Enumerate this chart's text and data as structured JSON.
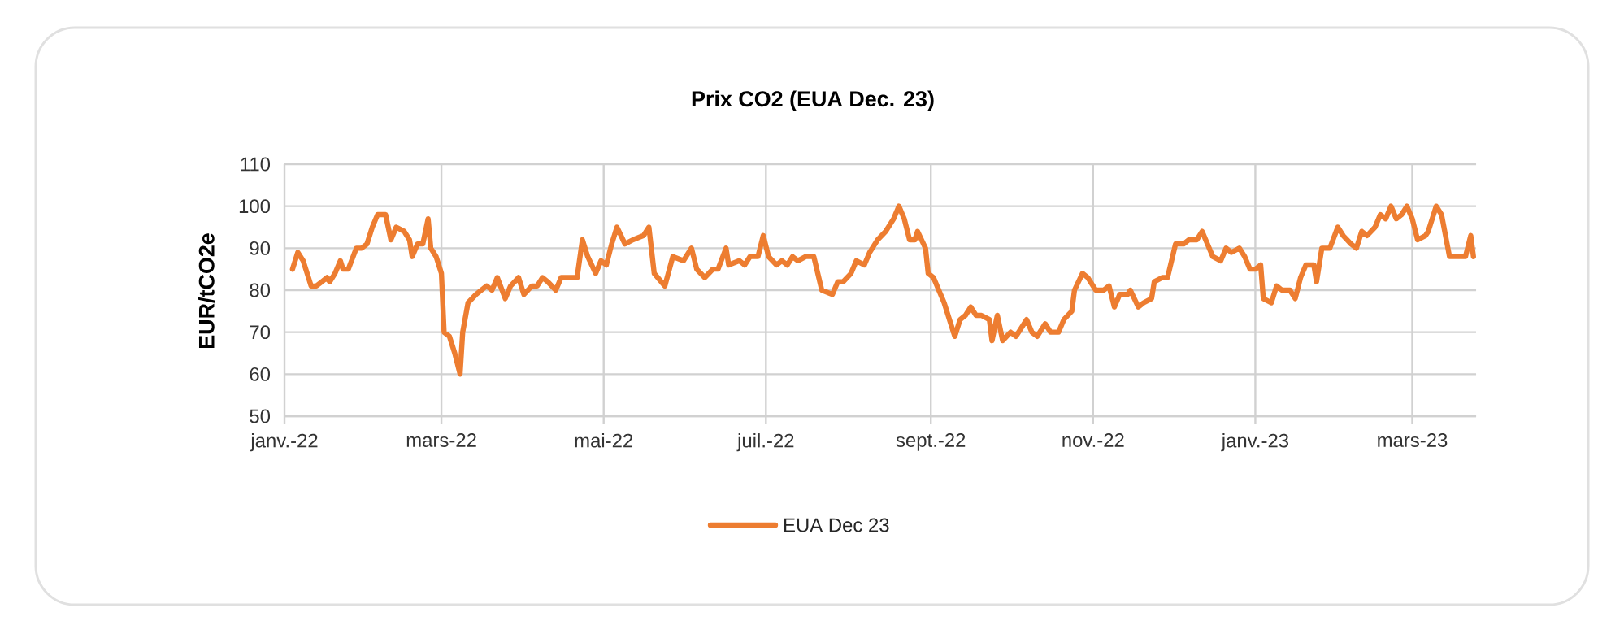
{
  "chart_data": {
    "type": "line",
    "title": "Prix CO2 (EUA Dec. 23)",
    "ylabel": "EUR/tCO2e",
    "xlim": [
      "2022-01-01",
      "2023-03-25"
    ],
    "xticks": [
      {
        "value": "2022-01-01",
        "label": "janv.-22"
      },
      {
        "value": "2022-03-01",
        "label": "mars-22"
      },
      {
        "value": "2022-05-01",
        "label": "mai-22"
      },
      {
        "value": "2022-07-01",
        "label": "juil.-22"
      },
      {
        "value": "2022-09-01",
        "label": "sept.-22"
      },
      {
        "value": "2022-11-01",
        "label": "nov.-22"
      },
      {
        "value": "2023-01-01",
        "label": "janv.-23"
      },
      {
        "value": "2023-03-01",
        "label": "mars-23"
      }
    ],
    "ylim": [
      50,
      110
    ],
    "yticks": [
      50,
      60,
      70,
      80,
      90,
      100,
      110
    ],
    "grid": true,
    "legend": "bottom",
    "marker": "none",
    "line_style": "solid",
    "x": [
      "2022-01-04",
      "2022-01-06",
      "2022-01-08",
      "2022-01-11",
      "2022-01-13",
      "2022-01-15",
      "2022-01-17",
      "2022-01-18",
      "2022-01-20",
      "2022-01-22",
      "2022-01-23",
      "2022-01-25",
      "2022-01-28",
      "2022-01-30",
      "2022-02-01",
      "2022-02-03",
      "2022-02-05",
      "2022-02-08",
      "2022-02-10",
      "2022-02-12",
      "2022-02-15",
      "2022-02-17",
      "2022-02-18",
      "2022-02-20",
      "2022-02-22",
      "2022-02-24",
      "2022-02-25",
      "2022-02-27",
      "2022-03-01",
      "2022-03-02",
      "2022-03-04",
      "2022-03-06",
      "2022-03-08",
      "2022-03-09",
      "2022-03-11",
      "2022-03-14",
      "2022-03-16",
      "2022-03-18",
      "2022-03-20",
      "2022-03-22",
      "2022-03-25",
      "2022-03-27",
      "2022-03-30",
      "2022-04-01",
      "2022-04-04",
      "2022-04-06",
      "2022-04-08",
      "2022-04-10",
      "2022-04-13",
      "2022-04-15",
      "2022-04-18",
      "2022-04-21",
      "2022-04-23",
      "2022-04-25",
      "2022-04-28",
      "2022-04-30",
      "2022-05-02",
      "2022-05-04",
      "2022-05-06",
      "2022-05-09",
      "2022-05-12",
      "2022-05-16",
      "2022-05-18",
      "2022-05-20",
      "2022-05-24",
      "2022-05-27",
      "2022-05-31",
      "2022-06-03",
      "2022-06-05",
      "2022-06-08",
      "2022-06-11",
      "2022-06-13",
      "2022-06-16",
      "2022-06-17",
      "2022-06-21",
      "2022-06-23",
      "2022-06-25",
      "2022-06-28",
      "2022-06-30",
      "2022-07-02",
      "2022-07-05",
      "2022-07-07",
      "2022-07-09",
      "2022-07-11",
      "2022-07-13",
      "2022-07-16",
      "2022-07-19",
      "2022-07-22",
      "2022-07-26",
      "2022-07-28",
      "2022-07-30",
      "2022-08-02",
      "2022-08-04",
      "2022-08-07",
      "2022-08-09",
      "2022-08-12",
      "2022-08-15",
      "2022-08-18",
      "2022-08-20",
      "2022-08-22",
      "2022-08-24",
      "2022-08-26",
      "2022-08-27",
      "2022-08-30",
      "2022-08-31",
      "2022-09-02",
      "2022-09-06",
      "2022-09-08",
      "2022-09-10",
      "2022-09-12",
      "2022-09-14",
      "2022-09-16",
      "2022-09-18",
      "2022-09-20",
      "2022-09-23",
      "2022-09-24",
      "2022-09-26",
      "2022-09-28",
      "2022-10-01",
      "2022-10-03",
      "2022-10-05",
      "2022-10-07",
      "2022-10-09",
      "2022-10-11",
      "2022-10-14",
      "2022-10-16",
      "2022-10-19",
      "2022-10-21",
      "2022-10-24",
      "2022-10-25",
      "2022-10-28",
      "2022-10-30",
      "2022-11-02",
      "2022-11-05",
      "2022-11-07",
      "2022-11-09",
      "2022-11-11",
      "2022-11-14",
      "2022-11-15",
      "2022-11-18",
      "2022-11-20",
      "2022-11-23",
      "2022-11-24",
      "2022-11-27",
      "2022-11-29",
      "2022-12-02",
      "2022-12-05",
      "2022-12-07",
      "2022-12-10",
      "2022-12-12",
      "2022-12-14",
      "2022-12-16",
      "2022-12-19",
      "2022-12-21",
      "2022-12-23",
      "2022-12-26",
      "2022-12-28",
      "2022-12-30",
      "2023-01-01",
      "2023-01-03",
      "2023-01-04",
      "2023-01-07",
      "2023-01-09",
      "2023-01-11",
      "2023-01-14",
      "2023-01-16",
      "2023-01-18",
      "2023-01-20",
      "2023-01-23",
      "2023-01-24",
      "2023-01-26",
      "2023-01-29",
      "2023-02-01",
      "2023-02-03",
      "2023-02-06",
      "2023-02-08",
      "2023-02-10",
      "2023-02-12",
      "2023-02-15",
      "2023-02-17",
      "2023-02-19",
      "2023-02-21",
      "2023-02-23",
      "2023-02-25",
      "2023-02-27",
      "2023-03-01",
      "2023-03-03",
      "2023-03-06",
      "2023-03-07",
      "2023-03-10",
      "2023-03-12",
      "2023-03-15",
      "2023-03-18",
      "2023-03-21",
      "2023-03-23",
      "2023-03-24"
    ],
    "series": [
      {
        "name": "EUA Dec 23",
        "color": "#ed7d31",
        "values": [
          85,
          89,
          87,
          81,
          81,
          82,
          83,
          82,
          84,
          87,
          85,
          85,
          90,
          90,
          91,
          95,
          98,
          98,
          92,
          95,
          94,
          92,
          88,
          91,
          91,
          97,
          90,
          88,
          84,
          70,
          69,
          65,
          60,
          70,
          77,
          79,
          80,
          81,
          80,
          83,
          78,
          81,
          83,
          79,
          81,
          81,
          83,
          82,
          80,
          83,
          83,
          83,
          92,
          88,
          84,
          87,
          86,
          91,
          95,
          91,
          92,
          93,
          95,
          84,
          81,
          88,
          87,
          90,
          85,
          83,
          85,
          85,
          90,
          86,
          87,
          86,
          88,
          88,
          93,
          88,
          86,
          87,
          86,
          88,
          87,
          88,
          88,
          80,
          79,
          82,
          82,
          84,
          87,
          86,
          89,
          92,
          94,
          97,
          100,
          97,
          92,
          92,
          94,
          90,
          84,
          83,
          77,
          73,
          69,
          73,
          74,
          76,
          74,
          74,
          73,
          68,
          74,
          68,
          70,
          69,
          71,
          73,
          70,
          69,
          72,
          70,
          70,
          73,
          75,
          80,
          84,
          83,
          80,
          80,
          81,
          76,
          79,
          79,
          80,
          76,
          77,
          78,
          82,
          83,
          83,
          91,
          91,
          92,
          92,
          94,
          91,
          88,
          87,
          90,
          89,
          90,
          88,
          85,
          85,
          86,
          78,
          77,
          81,
          80,
          80,
          78,
          83,
          86,
          86,
          82,
          90,
          90,
          95,
          93,
          91,
          90,
          94,
          93,
          95,
          98,
          97,
          100,
          97,
          98,
          100,
          97,
          92,
          93,
          94,
          100,
          98,
          88,
          88,
          88,
          93,
          88
        ]
      }
    ]
  }
}
